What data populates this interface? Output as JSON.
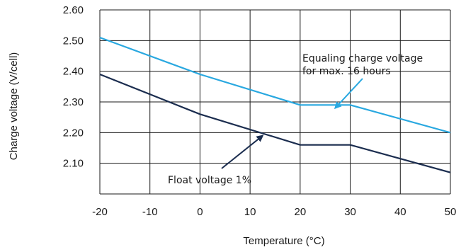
{
  "chart_data": {
    "type": "line",
    "xlabel": "Temperature (°C)",
    "ylabel": "Charge voltage (V/cell)",
    "xlim": [
      -20,
      50
    ],
    "ylim": [
      2.0,
      2.6
    ],
    "x_ticks": [
      "-20",
      "-10",
      "0",
      "10",
      "20",
      "30",
      "40",
      "50"
    ],
    "y_ticks": [
      "2.60",
      "2.50",
      "2.40",
      "2.30",
      "2.20",
      "2.10"
    ],
    "grid": true,
    "series": [
      {
        "color": "#29a8e0",
        "x": [
          -20,
          0,
          20,
          30,
          50
        ],
        "y": [
          2.51,
          2.39,
          2.29,
          2.29,
          2.2
        ]
      },
      {
        "color": "#1b2d4f",
        "x": [
          -20,
          0,
          20,
          30,
          50
        ],
        "y": [
          2.39,
          2.26,
          2.16,
          2.16,
          2.07
        ]
      }
    ],
    "annotations": [
      {
        "lines": [
          "Equaling charge voltage",
          "for max. 16 hours"
        ],
        "color": "#29a8e0",
        "arrow_to": [
          27,
          2.28
        ]
      },
      {
        "lines": [
          "Float voltage 1%"
        ],
        "color": "#1b2d4f",
        "arrow_to": [
          12.5,
          2.19
        ]
      }
    ]
  }
}
